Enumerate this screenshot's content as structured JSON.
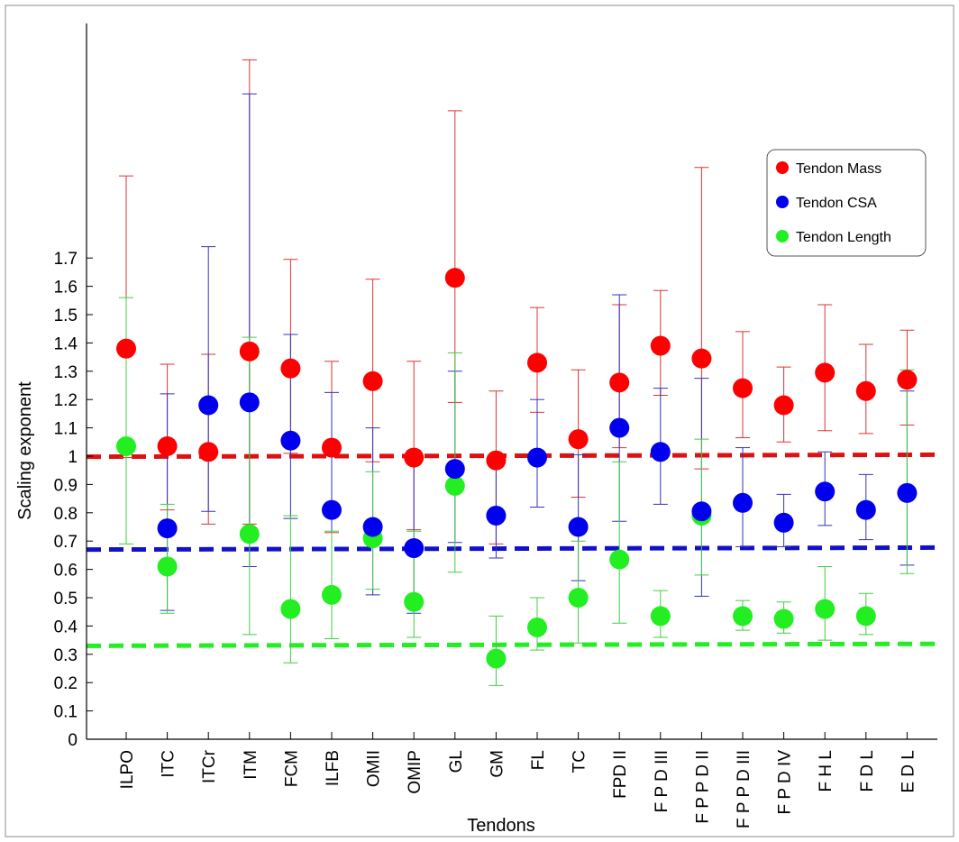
{
  "chart_data": {
    "type": "scatter",
    "xlabel": "Tendons",
    "ylabel": "Scaling exponent",
    "ylim": [
      0,
      2.5
    ],
    "yticks": [
      "0",
      "0.1",
      "0.2",
      "0.3",
      "0.4",
      "0.5",
      "0.6",
      "0.7",
      "0.8",
      "0.9",
      "1",
      "1.1",
      "1.2",
      "1.3",
      "1.4",
      "1.5",
      "1.6",
      "1.7"
    ],
    "categories": [
      "ILPO",
      "ITC",
      "ITCr",
      "ITM",
      "FCM",
      "ILFB",
      "OMII",
      "OMIP",
      "GL",
      "GM",
      "FL",
      "TC",
      "FPD II",
      "F P D III",
      "F P P D II",
      "F P P D III",
      "F P D IV",
      "F H L",
      "F D L",
      "E D L"
    ],
    "legend": {
      "position": "top-right"
    },
    "grid": false,
    "series": [
      {
        "name": "Tendon Mass",
        "color": "#ff0000",
        "error_color": "#dd3333",
        "values": [
          1.38,
          1.035,
          1.015,
          1.37,
          1.31,
          1.03,
          1.265,
          0.995,
          1.63,
          0.985,
          1.33,
          1.06,
          1.26,
          1.39,
          1.345,
          1.24,
          1.18,
          1.295,
          1.23,
          1.27
        ],
        "lower": [
          0.995,
          0.81,
          0.76,
          0.76,
          1.01,
          0.73,
          0.98,
          0.74,
          1.19,
          0.69,
          1.155,
          0.855,
          1.03,
          1.215,
          0.955,
          1.065,
          1.05,
          1.09,
          1.08,
          1.11
        ],
        "upper": [
          1.99,
          1.325,
          1.36,
          2.4,
          1.695,
          1.335,
          1.625,
          1.335,
          2.22,
          1.23,
          1.525,
          1.305,
          1.535,
          1.585,
          2.02,
          1.44,
          1.315,
          1.535,
          1.395,
          1.445
        ]
      },
      {
        "name": "Tendon CSA",
        "color": "#0000ee",
        "error_color": "#3333bb",
        "values": [
          null,
          0.745,
          1.18,
          1.19,
          1.055,
          0.81,
          0.75,
          0.675,
          0.955,
          0.79,
          0.995,
          0.75,
          1.1,
          1.015,
          0.805,
          0.835,
          0.765,
          0.875,
          0.81,
          0.87
        ],
        "lower": [
          null,
          0.455,
          0.805,
          0.61,
          0.78,
          0.525,
          0.51,
          0.445,
          0.695,
          0.64,
          0.82,
          0.56,
          0.77,
          0.83,
          0.505,
          0.68,
          0.68,
          0.755,
          0.705,
          0.615
        ],
        "upper": [
          null,
          1.22,
          1.74,
          2.28,
          1.43,
          1.225,
          1.1,
          1.02,
          1.3,
          0.975,
          1.2,
          1.005,
          1.57,
          1.24,
          1.275,
          1.03,
          0.865,
          1.015,
          0.935,
          1.23
        ]
      },
      {
        "name": "Tendon Length",
        "color": "#22ee22",
        "error_color": "#44cc44",
        "values": [
          1.035,
          0.61,
          null,
          0.725,
          0.46,
          0.51,
          0.71,
          0.485,
          0.895,
          0.285,
          0.395,
          0.5,
          0.635,
          0.435,
          0.79,
          0.435,
          0.425,
          0.46,
          0.435,
          null
        ],
        "lower": [
          0.69,
          0.445,
          null,
          0.37,
          0.27,
          0.355,
          0.53,
          0.36,
          0.59,
          0.19,
          0.315,
          0.34,
          0.41,
          0.36,
          0.58,
          0.385,
          0.375,
          0.35,
          0.37,
          0.585
        ],
        "upper": [
          1.56,
          0.83,
          null,
          1.42,
          0.79,
          0.735,
          0.945,
          0.735,
          1.365,
          0.435,
          0.5,
          0.7,
          0.98,
          0.525,
          1.06,
          0.49,
          0.485,
          0.61,
          0.515,
          1.305
        ]
      }
    ],
    "reference_lines": [
      {
        "name": "Tendon Mass reference",
        "color": "#dd1111",
        "y_start": 0.998,
        "y_end": 1.005
      },
      {
        "name": "Tendon CSA reference",
        "color": "#1111cc",
        "y_start": 0.67,
        "y_end": 0.677
      },
      {
        "name": "Tendon Length reference",
        "color": "#22ee22",
        "y_start": 0.33,
        "y_end": 0.337
      }
    ]
  }
}
